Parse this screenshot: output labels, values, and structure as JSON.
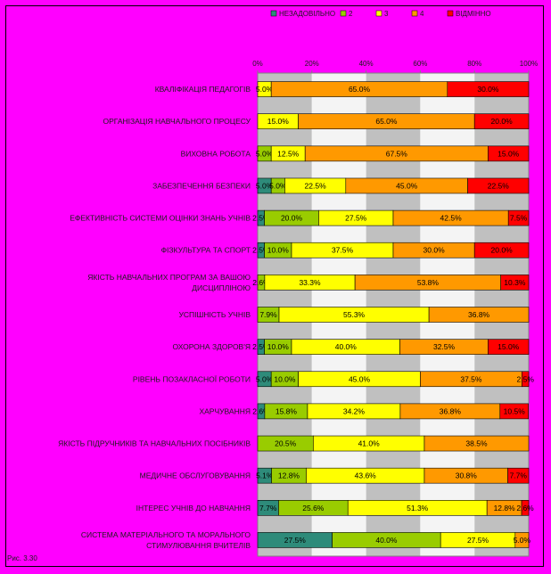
{
  "chart_data": {
    "type": "bar",
    "orientation": "horizontal",
    "stacked": "percent",
    "categories": [
      "КВАЛІФІКАЦІЯ ПЕДАГОГІВ",
      "ОРГАНІЗАЦІЯ НАВЧАЛЬНОГО ПРОЦЕСУ",
      "ВИХОВНА РОБОТА",
      "ЗАБЕЗПЕЧЕННЯ БЕЗПЕКИ",
      "ЕФЕКТИВНІСТЬ СИСТЕМИ ОЦІНКИ ЗНАНЬ УЧНІВ",
      "ФІЗКУЛЬТУРА ТА СПОРТ",
      "ЯКІСТЬ НАВЧАЛЬНИХ ПРОГРАМ ЗА ВАШОЮ ДИСЦИПЛІНОЮ",
      "УСПІШНІСТЬ УЧНІВ",
      "ОХОРОНА ЗДОРОВ'Я",
      "РІВЕНЬ ПОЗАКЛАСНОЇ РОБОТИ",
      "ХАРЧУВАННЯ",
      "ЯКІСТЬ ПІДРУЧНИКІВ ТА НАВЧАЛЬНИХ ПОСІБНИКІВ",
      "МЕДИЧНЕ ОБСЛУГОВУВАННЯ",
      "ІНТЕРЕС УЧНІВ ДО НАВЧАННЯ",
      "СИСТЕМА МАТЕРІАЛЬНОГО ТА МОРАЛЬНОГО СТИМУЛЮВАННЯ ВЧИТЕЛІВ"
    ],
    "series": [
      {
        "name": "НЕЗАДОВІЛЬНО",
        "color": "#2e8b7a",
        "values": [
          0,
          0,
          0,
          5.0,
          2.5,
          2.5,
          0,
          0,
          2.5,
          5.0,
          2.6,
          0,
          5.1,
          7.7,
          27.5
        ]
      },
      {
        "name": "2",
        "color": "#99cc00",
        "values": [
          0,
          0,
          5.0,
          5.0,
          20.0,
          10.0,
          2.6,
          7.9,
          10.0,
          10.0,
          15.8,
          20.5,
          12.8,
          25.6,
          40.0
        ]
      },
      {
        "name": "3",
        "color": "#ffff00",
        "values": [
          5.0,
          15.0,
          12.5,
          22.5,
          27.5,
          37.5,
          33.3,
          55.3,
          40.0,
          45.0,
          34.2,
          41.0,
          43.6,
          51.3,
          27.5
        ]
      },
      {
        "name": "4",
        "color": "#ff9900",
        "values": [
          65.0,
          65.0,
          67.5,
          45.0,
          42.5,
          30.0,
          53.8,
          36.8,
          32.5,
          37.5,
          36.8,
          38.5,
          30.8,
          12.8,
          5.0
        ]
      },
      {
        "name": "ВІДМІННО",
        "color": "#ff0000",
        "values": [
          30.0,
          20.0,
          15.0,
          22.5,
          7.5,
          20.0,
          10.3,
          0,
          15.0,
          2.5,
          10.5,
          0,
          7.7,
          2.6,
          0
        ]
      }
    ],
    "labels": [
      [
        "",
        "",
        "5.0%",
        "65.0%",
        "30.0%"
      ],
      [
        "",
        "",
        "15.0%",
        "65.0%",
        "20.0%"
      ],
      [
        "",
        "5.0%",
        "12.5%",
        "67.5%",
        "15.0%"
      ],
      [
        "5.0%",
        "5.0%",
        "22.5%",
        "45.0%",
        "22.5%"
      ],
      [
        "2.5%",
        "20.0%",
        "27.5%",
        "42.5%",
        "7.5%"
      ],
      [
        "2.5%",
        "10.0%",
        "37.5%",
        "30.0%",
        "20.0%"
      ],
      [
        "",
        "2.6%",
        "33.3%",
        "53.8%",
        "10.3%"
      ],
      [
        "",
        "7.9%",
        "55.3%",
        "36.8%",
        ""
      ],
      [
        "2.5%",
        "10.0%",
        "40.0%",
        "32.5%",
        "15.0%"
      ],
      [
        "5.0%",
        "10.0%",
        "45.0%",
        "37.5%",
        "2.5%"
      ],
      [
        "2.6%",
        "15.8%",
        "34.2%",
        "36.8%",
        "10.5%"
      ],
      [
        "",
        "20.5%",
        "41.0%",
        "38.5%",
        ""
      ],
      [
        "5.1%",
        "12.8%",
        "43.6%",
        "30.8%",
        "7.7%"
      ],
      [
        "7.7%",
        "25.6%",
        "51.3%",
        "12.8%",
        "2.6%"
      ],
      [
        "27.5%",
        "40.0%",
        "27.5%",
        "5.0%",
        ""
      ]
    ],
    "xticks": [
      "0%",
      "20%",
      "40%",
      "60%",
      "80%",
      "100%"
    ],
    "xlim": [
      0,
      100
    ],
    "grid": true,
    "legend": "top",
    "background": "#ff00ff"
  },
  "footnote": "Рис. 3.30"
}
